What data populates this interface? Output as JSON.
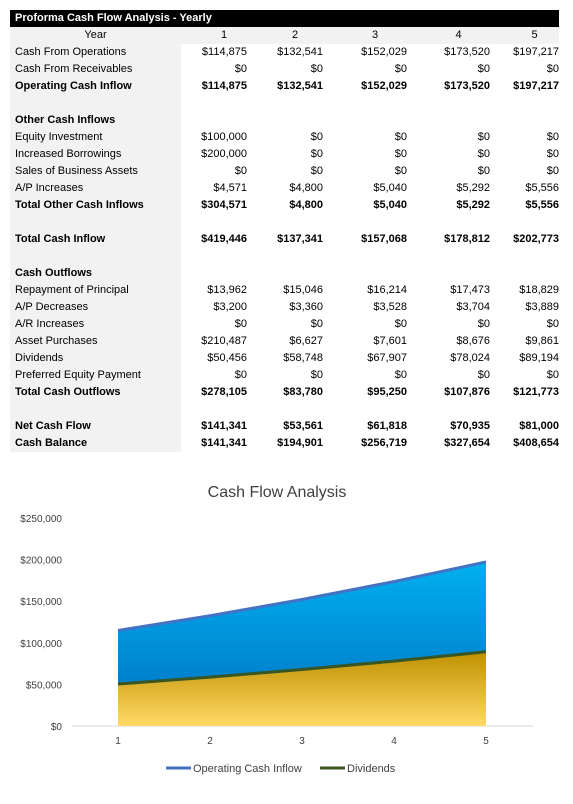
{
  "table": {
    "title": "Proforma Cash Flow Analysis - Yearly",
    "header_label": "Year",
    "years": [
      "1",
      "2",
      "3",
      "4",
      "5"
    ],
    "rows": [
      {
        "label": "Cash From Operations",
        "values": [
          "$114,875",
          "$132,541",
          "$152,029",
          "$173,520",
          "$197,217"
        ]
      },
      {
        "label": "Cash From Receivables",
        "values": [
          "$0",
          "$0",
          "$0",
          "$0",
          "$0"
        ]
      },
      {
        "label": "Operating Cash Inflow",
        "bold": true,
        "values": [
          "$114,875",
          "$132,541",
          "$152,029",
          "$173,520",
          "$197,217"
        ]
      },
      {
        "label": "",
        "values": [
          "",
          "",
          "",
          "",
          ""
        ]
      },
      {
        "label": "Other Cash Inflows",
        "bold": true,
        "values": [
          "",
          "",
          "",
          "",
          ""
        ]
      },
      {
        "label": "Equity Investment",
        "values": [
          "$100,000",
          "$0",
          "$0",
          "$0",
          "$0"
        ]
      },
      {
        "label": "Increased Borrowings",
        "values": [
          "$200,000",
          "$0",
          "$0",
          "$0",
          "$0"
        ]
      },
      {
        "label": "Sales of Business Assets",
        "values": [
          "$0",
          "$0",
          "$0",
          "$0",
          "$0"
        ]
      },
      {
        "label": "A/P Increases",
        "values": [
          "$4,571",
          "$4,800",
          "$5,040",
          "$5,292",
          "$5,556"
        ]
      },
      {
        "label": "Total Other Cash Inflows",
        "bold": true,
        "values": [
          "$304,571",
          "$4,800",
          "$5,040",
          "$5,292",
          "$5,556"
        ]
      },
      {
        "label": "",
        "values": [
          "",
          "",
          "",
          "",
          ""
        ]
      },
      {
        "label": "Total Cash Inflow",
        "bold": true,
        "values": [
          "$419,446",
          "$137,341",
          "$157,068",
          "$178,812",
          "$202,773"
        ]
      },
      {
        "label": "",
        "values": [
          "",
          "",
          "",
          "",
          ""
        ]
      },
      {
        "label": "Cash Outflows",
        "bold": true,
        "values": [
          "",
          "",
          "",
          "",
          ""
        ]
      },
      {
        "label": "Repayment of Principal",
        "values": [
          "$13,962",
          "$15,046",
          "$16,214",
          "$17,473",
          "$18,829"
        ]
      },
      {
        "label": "A/P Decreases",
        "values": [
          "$3,200",
          "$3,360",
          "$3,528",
          "$3,704",
          "$3,889"
        ]
      },
      {
        "label": "A/R Increases",
        "values": [
          "$0",
          "$0",
          "$0",
          "$0",
          "$0"
        ]
      },
      {
        "label": "Asset Purchases",
        "values": [
          "$210,487",
          "$6,627",
          "$7,601",
          "$8,676",
          "$9,861"
        ]
      },
      {
        "label": "Dividends",
        "values": [
          "$50,456",
          "$58,748",
          "$67,907",
          "$78,024",
          "$89,194"
        ]
      },
      {
        "label": "Preferred Equity Payment",
        "values": [
          "$0",
          "$0",
          "$0",
          "$0",
          "$0"
        ]
      },
      {
        "label": "Total Cash Outflows",
        "bold": true,
        "values": [
          "$278,105",
          "$83,780",
          "$95,250",
          "$107,876",
          "$121,773"
        ]
      },
      {
        "label": "",
        "values": [
          "",
          "",
          "",
          "",
          ""
        ]
      },
      {
        "label": "Net Cash Flow",
        "bold": true,
        "values": [
          "$141,341",
          "$53,561",
          "$61,818",
          "$70,935",
          "$81,000"
        ]
      },
      {
        "label": "Cash Balance",
        "bold": true,
        "values": [
          "$141,341",
          "$194,901",
          "$256,719",
          "$327,654",
          "$408,654"
        ]
      }
    ]
  },
  "chart_data": {
    "type": "area",
    "title": "Cash Flow Analysis",
    "x": [
      "1",
      "2",
      "3",
      "4",
      "5"
    ],
    "series": [
      {
        "name": "Operating Cash Inflow",
        "values": [
          114875,
          132541,
          152029,
          173520,
          197217
        ],
        "line_color": "#4472c4",
        "fill_top": "#00b0f0",
        "fill_bottom": "#0070c0"
      },
      {
        "name": "Dividends",
        "values": [
          50456,
          58748,
          67907,
          78024,
          89194
        ],
        "line_color": "#375623",
        "fill_top": "#bf9000",
        "fill_bottom": "#ffd966"
      }
    ],
    "ylim": [
      0,
      250000
    ],
    "yticks": [
      0,
      50000,
      100000,
      150000,
      200000,
      250000
    ],
    "ytick_labels": [
      "$0",
      "$50,000",
      "$100,000",
      "$150,000",
      "$200,000",
      "$250,000"
    ],
    "grid": false,
    "legend": "bottom"
  }
}
